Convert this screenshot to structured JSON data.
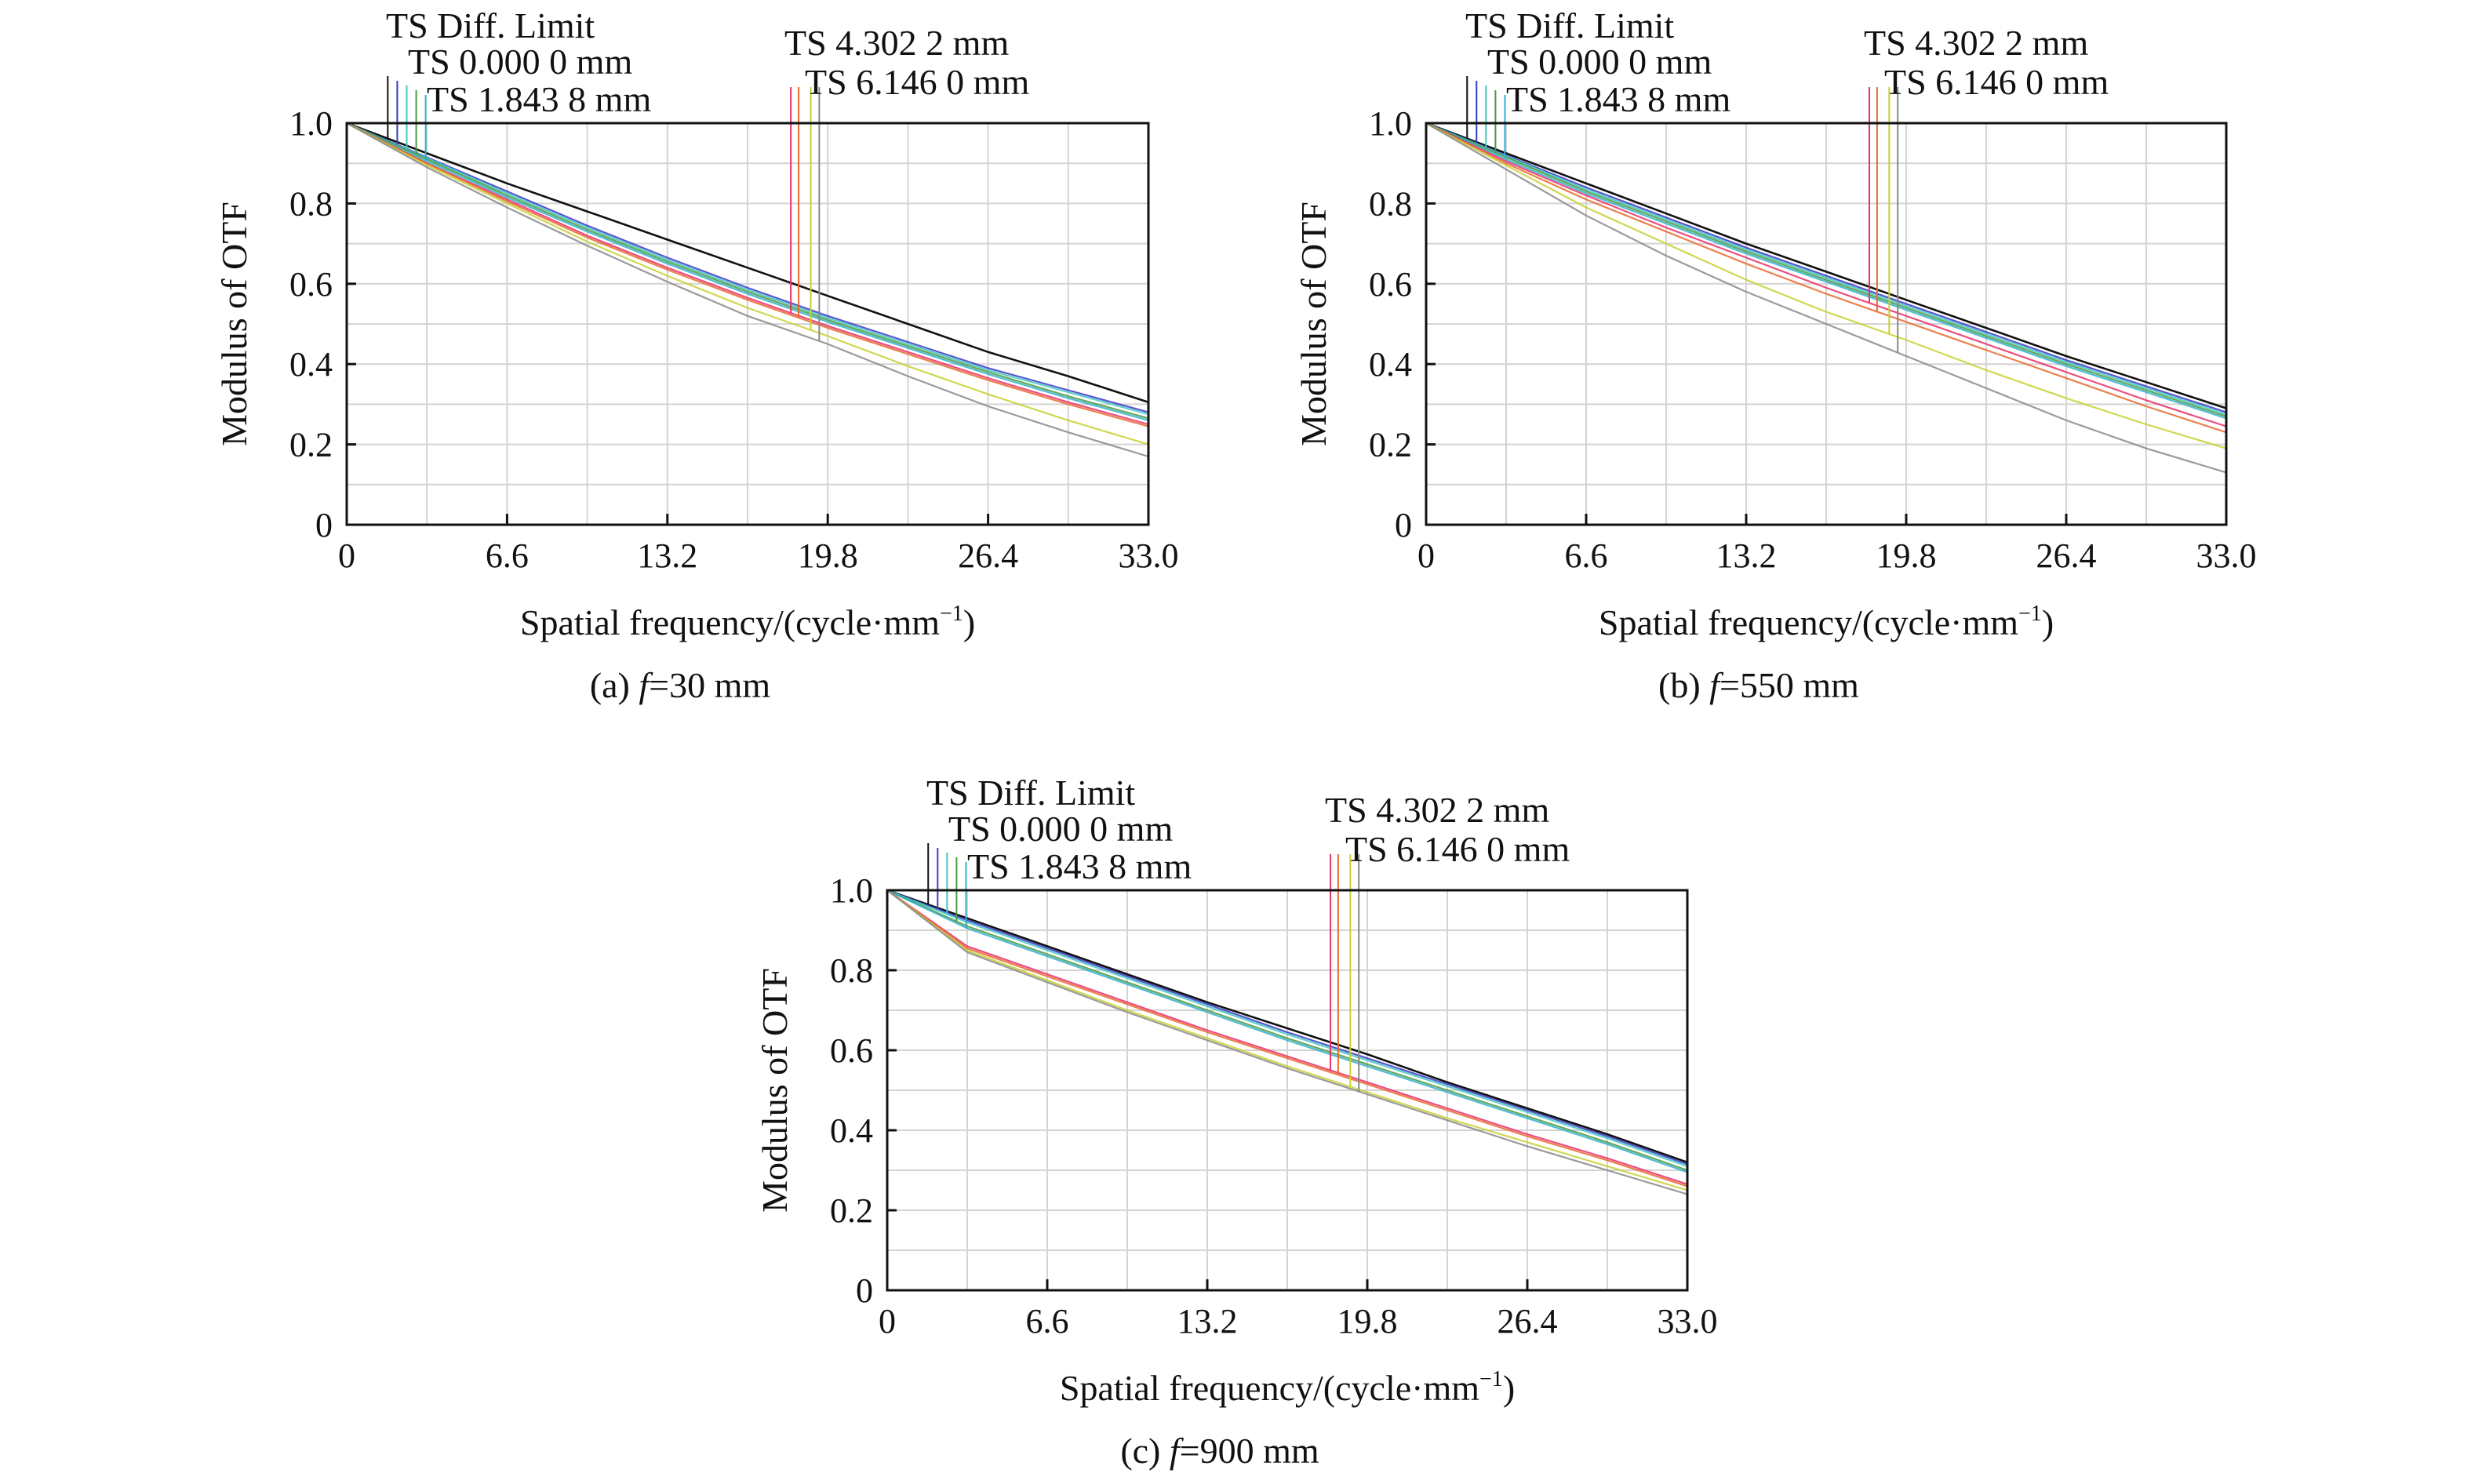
{
  "chart_data": [
    {
      "type": "line",
      "caption": {
        "label": "(a) ",
        "var": "f",
        "value": "=30 mm"
      },
      "ylabel": "Modulus of OTF",
      "xlabel": {
        "main": "Spatial frequency/(cycle·mm",
        "sup": "−1",
        "end": ")"
      },
      "xlim": [
        0,
        33
      ],
      "ylim": [
        0,
        1
      ],
      "grid": true,
      "x_ticks": [
        "0",
        "6.6",
        "13.2",
        "19.8",
        "26.4",
        "33.0"
      ],
      "y_ticks": [
        "0",
        "0.2",
        "0.4",
        "0.6",
        "0.8",
        "1.0"
      ],
      "legend": [
        "TS Diff. Limit",
        "TS 0.000 0 mm",
        "TS 1.843 8 mm",
        "TS 4.302 2 mm",
        "TS 6.146 0 mm"
      ],
      "x": [
        0,
        3.3,
        6.6,
        9.9,
        13.2,
        16.5,
        19.8,
        23.1,
        26.4,
        29.7,
        33.0
      ],
      "series": [
        {
          "name": "Diff. Limit",
          "values": [
            1,
            0.925,
            0.85,
            0.78,
            0.71,
            0.64,
            0.57,
            0.5,
            0.43,
            0.37,
            0.305
          ]
        },
        {
          "name": "0.000 0 mm T",
          "values": [
            1,
            0.915,
            0.83,
            0.745,
            0.665,
            0.59,
            0.52,
            0.455,
            0.39,
            0.335,
            0.28
          ]
        },
        {
          "name": "0.000 0 mm S",
          "values": [
            1,
            0.913,
            0.825,
            0.74,
            0.66,
            0.585,
            0.515,
            0.45,
            0.385,
            0.33,
            0.275
          ]
        },
        {
          "name": "1.843 8 mm T",
          "values": [
            1,
            0.91,
            0.82,
            0.735,
            0.655,
            0.58,
            0.51,
            0.445,
            0.38,
            0.32,
            0.265
          ]
        },
        {
          "name": "1.843 8 mm S",
          "values": [
            1,
            0.905,
            0.815,
            0.73,
            0.65,
            0.575,
            0.505,
            0.44,
            0.375,
            0.315,
            0.26
          ]
        },
        {
          "name": "4.302 2 mm T",
          "values": [
            1,
            0.9,
            0.81,
            0.72,
            0.64,
            0.565,
            0.495,
            0.43,
            0.365,
            0.305,
            0.25
          ]
        },
        {
          "name": "4.302 2 mm S",
          "values": [
            1,
            0.9,
            0.805,
            0.715,
            0.635,
            0.56,
            0.49,
            0.425,
            0.36,
            0.3,
            0.245
          ]
        },
        {
          "name": "6.146 0 mm T",
          "values": [
            1,
            0.895,
            0.8,
            0.705,
            0.62,
            0.54,
            0.47,
            0.395,
            0.325,
            0.26,
            0.2
          ]
        },
        {
          "name": "6.146 0 mm S",
          "values": [
            1,
            0.89,
            0.79,
            0.695,
            0.605,
            0.52,
            0.45,
            0.37,
            0.295,
            0.23,
            0.17
          ]
        }
      ]
    },
    {
      "type": "line",
      "caption": {
        "label": "(b) ",
        "var": "f",
        "value": "=550 mm"
      },
      "ylabel": "Modulus of OTF",
      "xlabel": {
        "main": "Spatial frequency/(cycle·mm",
        "sup": "−1",
        "end": ")"
      },
      "xlim": [
        0,
        33
      ],
      "ylim": [
        0,
        1
      ],
      "grid": true,
      "x_ticks": [
        "0",
        "6.6",
        "13.2",
        "19.8",
        "26.4",
        "33.0"
      ],
      "y_ticks": [
        "0",
        "0.2",
        "0.4",
        "0.6",
        "0.8",
        "1.0"
      ],
      "legend": [
        "TS Diff. Limit",
        "TS 0.000 0 mm",
        "TS 1.843 8 mm",
        "TS 4.302 2 mm",
        "TS 6.146 0 mm"
      ],
      "x": [
        0,
        3.3,
        6.6,
        9.9,
        13.2,
        16.5,
        19.8,
        23.1,
        26.4,
        29.7,
        33.0
      ],
      "series": [
        {
          "name": "Diff. Limit",
          "values": [
            1,
            0.925,
            0.85,
            0.775,
            0.7,
            0.63,
            0.56,
            0.49,
            0.42,
            0.355,
            0.29
          ]
        },
        {
          "name": "0.000 0 mm T",
          "values": [
            1,
            0.92,
            0.84,
            0.765,
            0.69,
            0.62,
            0.55,
            0.48,
            0.41,
            0.345,
            0.28
          ]
        },
        {
          "name": "0.000 0 mm S",
          "values": [
            1,
            0.918,
            0.835,
            0.76,
            0.685,
            0.615,
            0.545,
            0.475,
            0.405,
            0.34,
            0.275
          ]
        },
        {
          "name": "1.843 8 mm T",
          "values": [
            1,
            0.915,
            0.83,
            0.755,
            0.68,
            0.61,
            0.54,
            0.47,
            0.4,
            0.335,
            0.27
          ]
        },
        {
          "name": "1.843 8 mm S",
          "values": [
            1,
            0.91,
            0.825,
            0.75,
            0.675,
            0.605,
            0.535,
            0.465,
            0.395,
            0.33,
            0.265
          ]
        },
        {
          "name": "4.302 2 mm T",
          "values": [
            1,
            0.905,
            0.82,
            0.74,
            0.665,
            0.59,
            0.52,
            0.45,
            0.38,
            0.31,
            0.245
          ]
        },
        {
          "name": "4.302 2 mm S",
          "values": [
            1,
            0.9,
            0.81,
            0.73,
            0.65,
            0.575,
            0.505,
            0.435,
            0.365,
            0.295,
            0.23
          ]
        },
        {
          "name": "6.146 0 mm T",
          "values": [
            1,
            0.895,
            0.79,
            0.7,
            0.61,
            0.53,
            0.46,
            0.385,
            0.315,
            0.25,
            0.19
          ]
        },
        {
          "name": "6.146 0 mm S",
          "values": [
            1,
            0.885,
            0.77,
            0.67,
            0.58,
            0.5,
            0.42,
            0.34,
            0.26,
            0.19,
            0.13
          ]
        }
      ]
    },
    {
      "type": "line",
      "caption": {
        "label": "(c) ",
        "var": "f",
        "value": "=900 mm"
      },
      "ylabel": "Modulus of OTF",
      "xlabel": {
        "main": "Spatial frequency/(cycle·mm",
        "sup": "−1",
        "end": ")"
      },
      "xlim": [
        0,
        33
      ],
      "ylim": [
        0,
        1
      ],
      "grid": true,
      "x_ticks": [
        "0",
        "6.6",
        "13.2",
        "19.8",
        "26.4",
        "33.0"
      ],
      "y_ticks": [
        "0",
        "0.2",
        "0.4",
        "0.6",
        "0.8",
        "1.0"
      ],
      "legend": [
        "TS Diff. Limit",
        "TS 0.000 0 mm",
        "TS 1.843 8 mm",
        "TS 4.302 2 mm",
        "TS 6.146 0 mm"
      ],
      "x": [
        0,
        3.3,
        6.6,
        9.9,
        13.2,
        16.5,
        19.8,
        23.1,
        26.4,
        29.7,
        33.0
      ],
      "series": [
        {
          "name": "Diff. Limit",
          "values": [
            1,
            0.93,
            0.86,
            0.79,
            0.72,
            0.655,
            0.59,
            0.52,
            0.455,
            0.39,
            0.32
          ]
        },
        {
          "name": "0.000 0 mm T",
          "values": [
            1,
            0.925,
            0.855,
            0.785,
            0.715,
            0.645,
            0.58,
            0.515,
            0.45,
            0.385,
            0.315
          ]
        },
        {
          "name": "0.000 0 mm S",
          "values": [
            1,
            0.92,
            0.85,
            0.78,
            0.71,
            0.64,
            0.575,
            0.51,
            0.445,
            0.38,
            0.31
          ]
        },
        {
          "name": "1.843 8 mm T",
          "values": [
            1,
            0.91,
            0.84,
            0.77,
            0.7,
            0.63,
            0.565,
            0.5,
            0.435,
            0.37,
            0.3
          ]
        },
        {
          "name": "1.843 8 mm S",
          "values": [
            1,
            0.905,
            0.835,
            0.765,
            0.695,
            0.625,
            0.56,
            0.495,
            0.43,
            0.365,
            0.295
          ]
        },
        {
          "name": "4.302 2 mm T",
          "values": [
            1,
            0.86,
            0.79,
            0.72,
            0.65,
            0.585,
            0.52,
            0.455,
            0.39,
            0.33,
            0.265
          ]
        },
        {
          "name": "4.302 2 mm S",
          "values": [
            1,
            0.855,
            0.785,
            0.715,
            0.645,
            0.58,
            0.515,
            0.45,
            0.385,
            0.325,
            0.26
          ]
        },
        {
          "name": "6.146 0 mm T",
          "values": [
            1,
            0.85,
            0.775,
            0.7,
            0.63,
            0.56,
            0.495,
            0.43,
            0.37,
            0.31,
            0.25
          ]
        },
        {
          "name": "6.146 0 mm S",
          "values": [
            1,
            0.845,
            0.77,
            0.695,
            0.625,
            0.555,
            0.49,
            0.425,
            0.36,
            0.3,
            0.24
          ]
        }
      ]
    }
  ],
  "series_colors": [
    "#111111",
    "#3a3ac8",
    "#40c8c0",
    "#4a9a40",
    "#30b0d0",
    "#e8306a",
    "#e86a30",
    "#c8d030",
    "#888888"
  ]
}
